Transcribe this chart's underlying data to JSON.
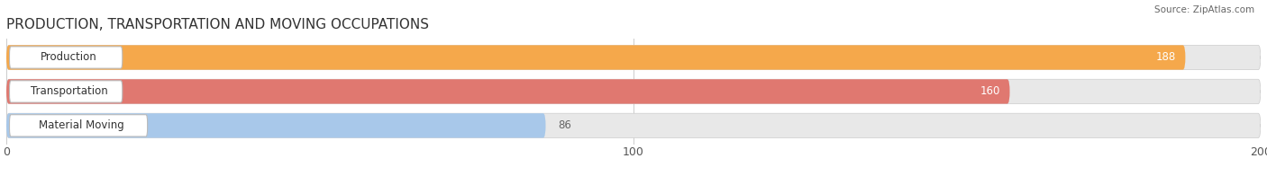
{
  "title": "PRODUCTION, TRANSPORTATION AND MOVING OCCUPATIONS",
  "source": "Source: ZipAtlas.com",
  "categories": [
    "Production",
    "Transportation",
    "Material Moving"
  ],
  "values": [
    188,
    160,
    86
  ],
  "bar_colors": [
    "#F5A84B",
    "#E07870",
    "#A8C8EA"
  ],
  "bg_color": "#E8E8E8",
  "xlim": [
    0,
    200
  ],
  "xticks": [
    0,
    100,
    200
  ],
  "value_label_color_in": "#FFFFFF",
  "value_label_color_out": "#666666",
  "title_fontsize": 11,
  "label_fontsize": 8.5,
  "tick_fontsize": 9,
  "bar_height": 0.72,
  "background_color": "#FFFFFF",
  "label_box_color": "#FFFFFF",
  "label_text_color": "#333333",
  "bar_border_color": "#CCCCCC",
  "grid_color": "#CCCCCC"
}
